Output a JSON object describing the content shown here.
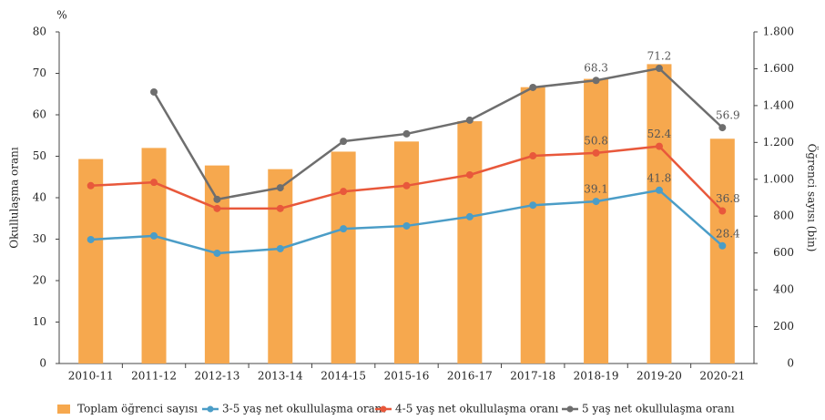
{
  "chart_data": {
    "type": "bar",
    "unit_label": "%",
    "ylabel": "Okullulaşma oranı",
    "y2label": "Öğrenci sayısı (bin)",
    "categories": [
      "2010-11",
      "2011-12",
      "2012-13",
      "2013-14",
      "2014-15",
      "2015-16",
      "2016-17",
      "2017-18",
      "2018-19",
      "2019-20",
      "2020-21"
    ],
    "ylim": [
      0,
      80
    ],
    "yticks": [
      0,
      10,
      20,
      30,
      40,
      50,
      60,
      70,
      80
    ],
    "y2lim": [
      0,
      1800
    ],
    "y2ticks": [
      0,
      200,
      400,
      600,
      800,
      {
        "value": 1000,
        "label": "1.000"
      },
      {
        "value": 1200,
        "label": "1.200"
      },
      {
        "value": 1400,
        "label": "1.400"
      },
      {
        "value": 1600,
        "label": "1.600"
      },
      {
        "value": 1800,
        "label": "1.800"
      }
    ],
    "grid": false,
    "legend": "bottom",
    "series": [
      {
        "name": "Toplam öğrenci sayısı",
        "type": "bar",
        "axis": "y2",
        "color": "#f6a84e",
        "values": [
          1110,
          1170,
          1075,
          1055,
          1150,
          1205,
          1315,
          1500,
          1545,
          1625,
          1220
        ]
      },
      {
        "name": "3-5 yaş net okullulaşma oranı",
        "type": "line",
        "color": "#4b9dc7",
        "values": [
          29.9,
          30.8,
          26.6,
          27.7,
          32.5,
          33.2,
          35.4,
          38.2,
          39.1,
          41.8,
          28.4
        ],
        "value_labels": [
          null,
          null,
          null,
          null,
          null,
          null,
          null,
          null,
          "39.1",
          "41.8",
          "28.4"
        ]
      },
      {
        "name": "4-5 yaş net okullulaşma oranı",
        "type": "line",
        "color": "#e8583b",
        "values": [
          42.9,
          43.7,
          37.4,
          37.4,
          41.5,
          42.9,
          45.5,
          50.1,
          50.8,
          52.4,
          36.8
        ],
        "value_labels": [
          null,
          null,
          null,
          null,
          null,
          null,
          null,
          null,
          "50.8",
          "52.4",
          "36.8"
        ]
      },
      {
        "name": "5 yaş net okullulaşma oranı",
        "type": "line",
        "color": "#6e6e6e",
        "values": [
          null,
          65.5,
          39.6,
          42.4,
          53.6,
          55.4,
          58.7,
          66.6,
          68.3,
          71.2,
          56.9
        ],
        "value_labels": [
          null,
          null,
          null,
          null,
          null,
          null,
          null,
          null,
          "68.3",
          "71.2",
          "56.9"
        ]
      }
    ]
  }
}
